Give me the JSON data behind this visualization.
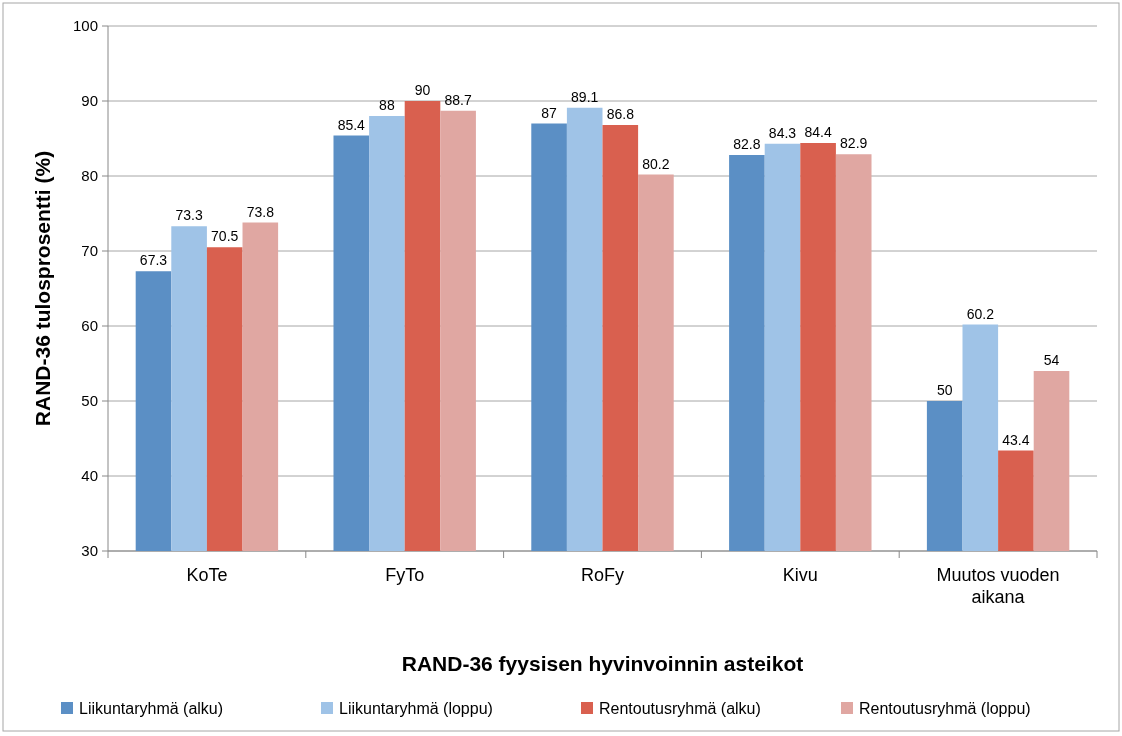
{
  "chart_data": {
    "type": "bar",
    "xlabel": "RAND-36 fyysisen hyvinvoinnin asteikot",
    "ylabel": "RAND-36 tulosprosentti (%)",
    "categories": [
      "KoTe",
      "FyTo",
      "RoFy",
      "Kivu",
      "Muutos vuoden aikana"
    ],
    "series": [
      {
        "name": "Liikuntaryhmä (alku)",
        "color": "#5b8fc5",
        "values": [
          67.3,
          85.4,
          87,
          82.8,
          50
        ]
      },
      {
        "name": "Liikuntaryhmä (loppu)",
        "color": "#9fc3e7",
        "values": [
          73.3,
          88,
          89.1,
          84.3,
          60.2
        ]
      },
      {
        "name": "Rentoutusryhmä (alku)",
        "color": "#d9604f",
        "values": [
          70.5,
          90,
          86.8,
          84.4,
          43.4
        ]
      },
      {
        "name": "Rentoutusryhmä (loppu)",
        "color": "#e0a7a2",
        "values": [
          73.8,
          88.7,
          80.2,
          82.9,
          54
        ]
      }
    ],
    "ylim": [
      30,
      100
    ],
    "yticks": [
      30,
      40,
      50,
      60,
      70,
      80,
      90,
      100
    ],
    "grid": "y",
    "legend": "bottom",
    "data_labels": true
  }
}
